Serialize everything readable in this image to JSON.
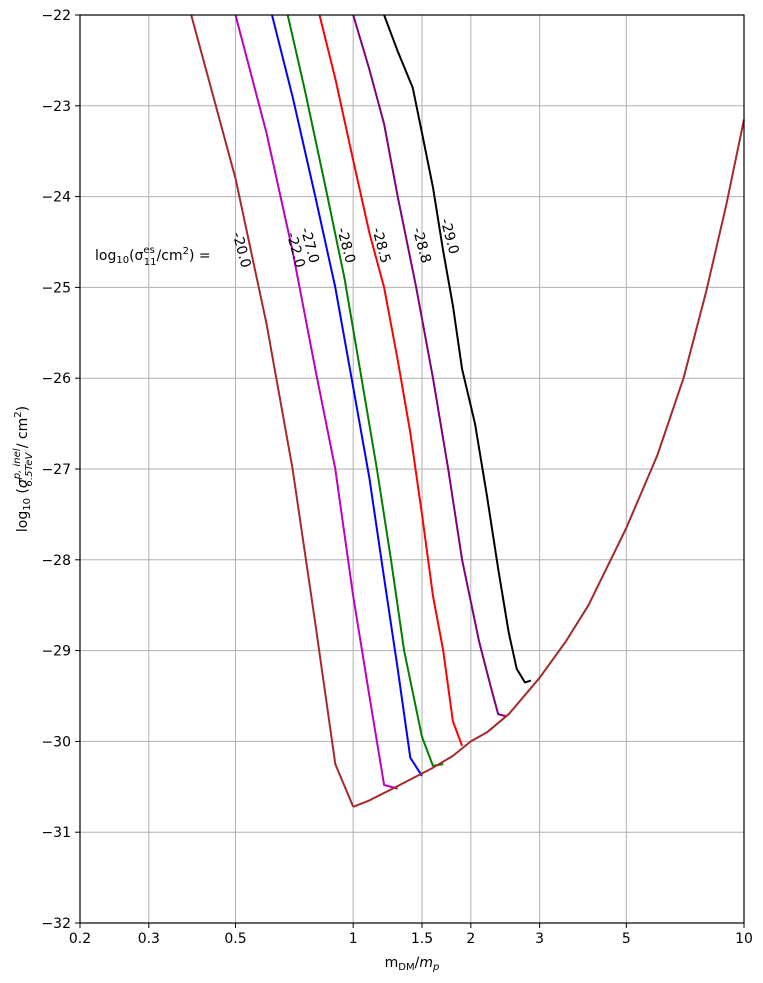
{
  "chart_data": {
    "type": "line",
    "title": "",
    "xscale": "log",
    "xlim": [
      0.2,
      10
    ],
    "ylim": [
      -32,
      -22
    ],
    "grid": true,
    "x_ticks": [
      0.2,
      0.3,
      0.5,
      1,
      1.5,
      2,
      3,
      5,
      10
    ],
    "x_tick_labels": [
      "0.2",
      "0.3",
      "0.5",
      "1",
      "1.5",
      "2",
      "3",
      "5",
      "10"
    ],
    "y_ticks": [
      -32,
      -31,
      -30,
      -29,
      -28,
      -27,
      -26,
      -25,
      -24,
      -23,
      -22
    ],
    "y_tick_labels": [
      "−32",
      "−31",
      "−30",
      "−29",
      "−28",
      "−27",
      "−26",
      "−25",
      "−24",
      "−23",
      "−22"
    ],
    "annotation": {
      "prefix": "log",
      "prefix_sub": "10",
      "open": "(σ",
      "sup": "es",
      "sub": "11",
      "suffix": "/cm",
      "suffix_sup": "2",
      "close": ") ="
    },
    "series": [
      {
        "name": "-20.0",
        "color": "#a52a2a",
        "label_at": [
          0.505,
          -24.6
        ],
        "x": [
          0.385,
          0.5,
          0.6,
          0.7,
          0.8,
          0.9,
          1.0
        ],
        "y": [
          -22.0,
          -23.8,
          -25.4,
          -27.0,
          -28.7,
          -30.25,
          -30.72
        ]
      },
      {
        "name": "-22.0",
        "color": "#c000c0",
        "label_at": [
          0.695,
          -24.6
        ],
        "x": [
          0.5,
          0.6,
          0.7,
          0.8,
          0.9,
          1.0,
          1.1,
          1.2,
          1.3
        ],
        "y": [
          -22.0,
          -23.3,
          -24.6,
          -25.9,
          -27.0,
          -28.4,
          -29.5,
          -30.48,
          -30.52
        ]
      },
      {
        "name": "-27.0",
        "color": "#0000ff",
        "label_at": [
          0.755,
          -24.55
        ],
        "x": [
          0.62,
          0.7,
          0.8,
          0.9,
          1.0,
          1.1,
          1.2,
          1.3,
          1.4,
          1.5
        ],
        "y": [
          -22.0,
          -22.9,
          -24.0,
          -25.0,
          -26.1,
          -27.1,
          -28.2,
          -29.2,
          -30.18,
          -30.38
        ]
      },
      {
        "name": "-28.0",
        "color": "#008000",
        "label_at": [
          0.935,
          -24.55
        ],
        "x": [
          0.68,
          0.75,
          0.85,
          0.95,
          1.05,
          1.15,
          1.25,
          1.35,
          1.5,
          1.6,
          1.7
        ],
        "y": [
          -22.0,
          -22.8,
          -23.9,
          -24.9,
          -26.0,
          -27.0,
          -28.0,
          -29.0,
          -29.95,
          -30.27,
          -30.25
        ]
      },
      {
        "name": "-28.5",
        "color": "#ff0000",
        "label_at": [
          1.15,
          -24.55
        ],
        "x": [
          0.82,
          0.9,
          1.0,
          1.1,
          1.2,
          1.3,
          1.4,
          1.5,
          1.6,
          1.7,
          1.8,
          1.9
        ],
        "y": [
          -22.0,
          -22.7,
          -23.6,
          -24.4,
          -25.0,
          -25.8,
          -26.6,
          -27.5,
          -28.4,
          -29.0,
          -29.78,
          -30.05
        ]
      },
      {
        "name": "-28.8",
        "color": "#800080",
        "label_at": [
          1.46,
          -24.55
        ],
        "x": [
          1.0,
          1.1,
          1.2,
          1.3,
          1.45,
          1.6,
          1.75,
          1.9,
          2.1,
          2.25,
          2.35,
          2.45
        ],
        "y": [
          -22.0,
          -22.6,
          -23.2,
          -24.0,
          -25.0,
          -26.0,
          -27.0,
          -28.0,
          -28.9,
          -29.4,
          -29.7,
          -29.72
        ]
      },
      {
        "name": "-29.0",
        "color": "#000000",
        "label_at": [
          1.72,
          -24.45
        ],
        "x": [
          1.2,
          1.3,
          1.42,
          1.5,
          1.6,
          1.7,
          1.8,
          1.9,
          2.05,
          2.2,
          2.35,
          2.5,
          2.62,
          2.75,
          2.85
        ],
        "y": [
          -22.0,
          -22.4,
          -22.8,
          -23.3,
          -23.9,
          -24.6,
          -25.2,
          -25.9,
          -26.5,
          -27.3,
          -28.1,
          -28.8,
          -29.2,
          -29.35,
          -29.33
        ]
      },
      {
        "name": "",
        "color": "#a52a2a",
        "label_at": null,
        "x": [
          1.0,
          1.1,
          1.25,
          1.4,
          1.6,
          1.8,
          2.0,
          2.2,
          2.5,
          3.0,
          3.5,
          4.0,
          5.0,
          6.0,
          7.0,
          8.0,
          9.0,
          10.0
        ],
        "y": [
          -30.72,
          -30.65,
          -30.53,
          -30.42,
          -30.29,
          -30.16,
          -30.0,
          -29.9,
          -29.7,
          -29.3,
          -28.9,
          -28.5,
          -27.65,
          -26.85,
          -26.0,
          -25.05,
          -24.1,
          -23.15
        ]
      }
    ]
  }
}
